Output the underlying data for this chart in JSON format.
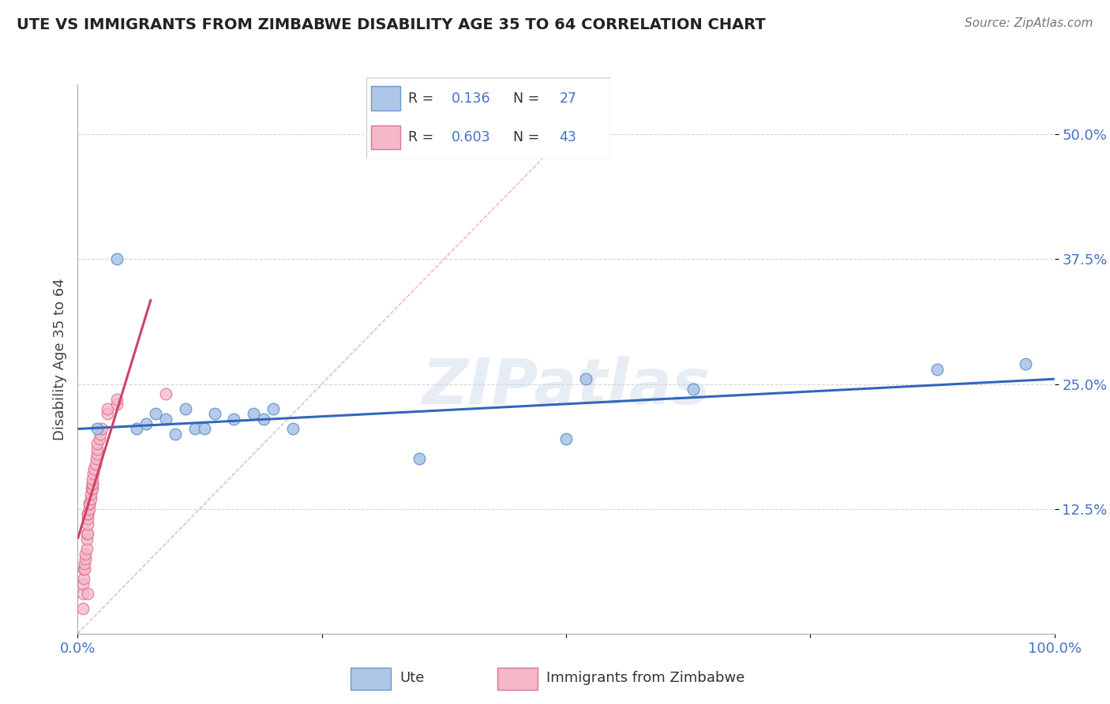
{
  "title": "UTE VS IMMIGRANTS FROM ZIMBABWE DISABILITY AGE 35 TO 64 CORRELATION CHART",
  "source": "Source: ZipAtlas.com",
  "ylabel": "Disability Age 35 to 64",
  "xlim": [
    0.0,
    1.0
  ],
  "ylim": [
    0.0,
    0.55
  ],
  "yticks": [
    0.125,
    0.25,
    0.375,
    0.5
  ],
  "ytick_labels": [
    "12.5%",
    "25.0%",
    "37.5%",
    "50.0%"
  ],
  "xtick_labels": [
    "0.0%",
    "100.0%"
  ],
  "blue_color": "#aec6e8",
  "pink_color": "#f4b8c8",
  "blue_edge_color": "#6699cc",
  "pink_edge_color": "#e07090",
  "blue_line_color": "#3366bb",
  "pink_line_color": "#cc4466",
  "diag_line_color": "#e8aaaa",
  "watermark": "ZIPatlas",
  "ute_points_x": [
    0.02,
    0.04,
    0.06,
    0.07,
    0.08,
    0.09,
    0.1,
    0.11,
    0.12,
    0.13,
    0.14,
    0.16,
    0.18,
    0.19,
    0.2,
    0.22,
    0.35,
    0.5,
    0.52,
    0.63,
    0.88,
    0.97
  ],
  "ute_points_y": [
    0.205,
    0.375,
    0.205,
    0.21,
    0.22,
    0.215,
    0.2,
    0.225,
    0.205,
    0.205,
    0.22,
    0.215,
    0.22,
    0.215,
    0.225,
    0.205,
    0.175,
    0.195,
    0.255,
    0.245,
    0.265,
    0.27
  ],
  "zim_points_x": [
    0.005,
    0.005,
    0.005,
    0.006,
    0.006,
    0.007,
    0.007,
    0.008,
    0.008,
    0.009,
    0.009,
    0.009,
    0.01,
    0.01,
    0.01,
    0.01,
    0.01,
    0.012,
    0.012,
    0.012,
    0.013,
    0.013,
    0.014,
    0.015,
    0.015,
    0.015,
    0.015,
    0.016,
    0.017,
    0.018,
    0.019,
    0.02,
    0.02,
    0.02,
    0.022,
    0.023,
    0.025,
    0.03,
    0.03,
    0.04,
    0.04,
    0.09,
    0.01
  ],
  "zim_points_y": [
    0.025,
    0.04,
    0.05,
    0.055,
    0.065,
    0.065,
    0.07,
    0.075,
    0.08,
    0.085,
    0.095,
    0.1,
    0.1,
    0.11,
    0.115,
    0.12,
    0.12,
    0.125,
    0.13,
    0.13,
    0.135,
    0.14,
    0.145,
    0.145,
    0.15,
    0.15,
    0.155,
    0.16,
    0.165,
    0.17,
    0.175,
    0.18,
    0.185,
    0.19,
    0.195,
    0.2,
    0.205,
    0.22,
    0.225,
    0.23,
    0.235,
    0.24,
    0.04
  ],
  "blue_trend_x": [
    0.0,
    1.0
  ],
  "blue_trend_y": [
    0.205,
    0.255
  ],
  "pink_trend_x": [
    0.0,
    0.075
  ],
  "pink_trend_y": [
    0.095,
    0.335
  ],
  "diag_line_x": [
    0.0,
    0.53
  ],
  "diag_line_y": [
    0.0,
    0.53
  ]
}
